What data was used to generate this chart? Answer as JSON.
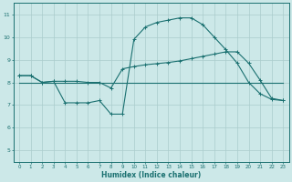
{
  "xlabel": "Humidex (Indice chaleur)",
  "background_color": "#cce8e8",
  "line_color": "#1a7070",
  "grid_color": "#aacccc",
  "x_min": -0.5,
  "x_max": 23.5,
  "y_min": 4.5,
  "y_max": 11.5,
  "y_ticks": [
    5,
    6,
    7,
    8,
    9,
    10,
    11
  ],
  "x_ticks": [
    0,
    1,
    2,
    3,
    4,
    5,
    6,
    7,
    8,
    9,
    10,
    11,
    12,
    13,
    14,
    15,
    16,
    17,
    18,
    19,
    20,
    21,
    22,
    23
  ],
  "line1_x": [
    0,
    1,
    2,
    3,
    4,
    5,
    6,
    7,
    8,
    9,
    10,
    11,
    12,
    13,
    14,
    15,
    16,
    17,
    18,
    19,
    20,
    21,
    22,
    23
  ],
  "line1_y": [
    8.3,
    8.3,
    8.0,
    8.05,
    8.05,
    8.05,
    8.0,
    8.0,
    7.75,
    8.6,
    8.7,
    8.78,
    8.83,
    8.88,
    8.95,
    9.05,
    9.15,
    9.25,
    9.35,
    9.35,
    8.85,
    8.1,
    7.3,
    7.2
  ],
  "line2_x": [
    0,
    1,
    2,
    3,
    4,
    5,
    6,
    7,
    8,
    9,
    10,
    11,
    12,
    13,
    14,
    15,
    16,
    17,
    18,
    19,
    20,
    21,
    22,
    23
  ],
  "line2_y": [
    8.3,
    8.3,
    8.0,
    8.05,
    7.1,
    7.1,
    7.1,
    7.2,
    6.6,
    6.6,
    9.9,
    10.45,
    10.65,
    10.75,
    10.85,
    10.85,
    10.55,
    10.0,
    9.45,
    8.85,
    8.0,
    7.5,
    7.25,
    7.2
  ],
  "flat_line_x": [
    0,
    23
  ],
  "flat_line_y": [
    8.0,
    8.0
  ]
}
